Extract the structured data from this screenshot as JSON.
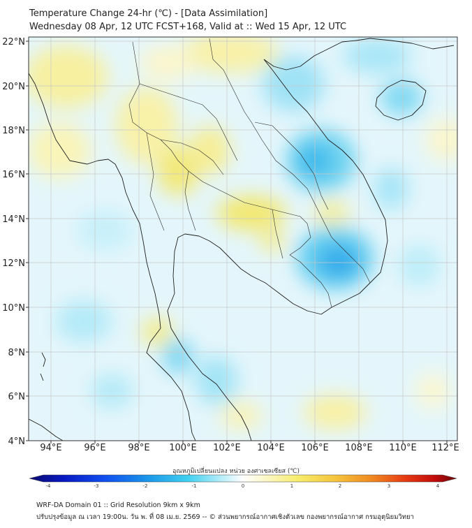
{
  "header": {
    "title_line1": "Temperature Change 24-hr (℃) - [Data Assimilation]",
    "title_line2": "Wednesday 08 Apr, 12 UTC FCST+168, Valid at :: Wed 15 Apr, 12 UTC"
  },
  "map": {
    "lon_labels": [
      "94°E",
      "96°E",
      "98°E",
      "100°E",
      "102°E",
      "104°E",
      "106°E",
      "108°E",
      "110°E",
      "112°E"
    ],
    "lat_labels": [
      "22°N",
      "20°N",
      "18°N",
      "16°N",
      "14°N",
      "12°N",
      "10°N",
      "8°N",
      "6°N",
      "4°N"
    ],
    "lon_range": [
      93,
      112.5
    ],
    "lat_range": [
      4,
      22.2
    ],
    "colors": {
      "warm": "#f5ec8a",
      "cool": "#66d4f0",
      "cold": "#1aa9e8",
      "border": "#222222"
    }
  },
  "colorbar": {
    "title": "อุณหภูมิเปลี่ยนแปลง หน่วย องศาเซลเซียส (℃)",
    "ticks": [
      "-4",
      "-3",
      "-2",
      "-1",
      "0",
      "1",
      "2",
      "3",
      "4"
    ],
    "range": [
      -4,
      4
    ]
  },
  "footer": {
    "line1": "WRF-DA Domain 01 :: Grid Resolution 9km x 9km",
    "line2": "ปรับปรุงข้อมูล ณ เวลา 19:00น. วัน พ. ที่ 08 เม.ย. 2569 -- © ส่วนพยากรณ์อากาศเชิงตัวเลข กองพยากรณ์อากาศ กรมอุตุนิยมวิทยา"
  }
}
